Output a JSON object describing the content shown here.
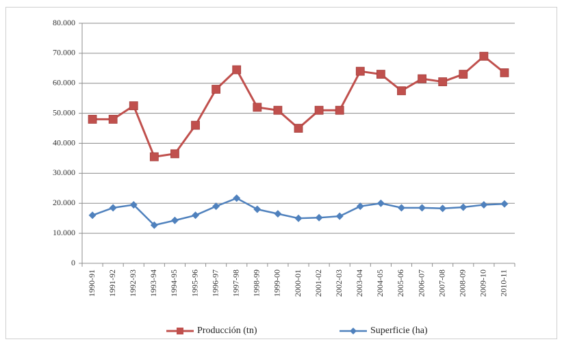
{
  "chart_data": {
    "type": "line",
    "title": "",
    "xlabel": "",
    "ylabel": "",
    "ylim": [
      0,
      80000
    ],
    "y_ticks": [
      "0",
      "10.000",
      "20.000",
      "30.000",
      "40.000",
      "50.000",
      "60.000",
      "70.000",
      "80.000"
    ],
    "grid": true,
    "legend_position": "bottom",
    "categories": [
      "1990-91",
      "1991-92",
      "1992-93",
      "1993-94",
      "1994-95",
      "1995-96",
      "1996-97",
      "1997-98",
      "1998-99",
      "1999-00",
      "2000-01",
      "2001-02",
      "2002-03",
      "2003-04",
      "2004-05",
      "2005-06",
      "2006-07",
      "2007-08",
      "2008-09",
      "2009-10",
      "2010-11"
    ],
    "series": [
      {
        "name": "Producción (tn)",
        "color": "#c0504d",
        "marker": "square",
        "values": [
          48000,
          48000,
          52500,
          35500,
          36500,
          46000,
          58000,
          64500,
          52000,
          51000,
          45000,
          51000,
          51000,
          64000,
          63000,
          57500,
          61500,
          60500,
          63000,
          69000,
          63500
        ]
      },
      {
        "name": "Superficie (ha)",
        "color": "#4f81bd",
        "marker": "diamond",
        "values": [
          16000,
          18500,
          19500,
          12700,
          14300,
          16000,
          19000,
          21700,
          18000,
          16500,
          15000,
          15200,
          15700,
          19000,
          20000,
          18500,
          18500,
          18300,
          18700,
          19500,
          19800
        ]
      }
    ]
  }
}
